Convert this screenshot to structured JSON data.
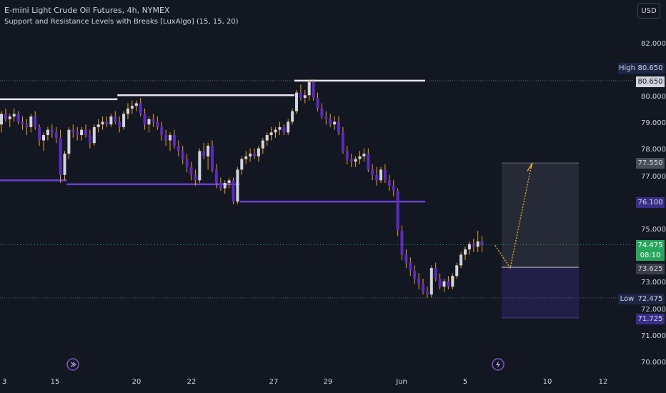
{
  "header": {
    "title": "E-mini Light Crude Oil Futures, 4h, NYMEX",
    "indicator": "Support and Resistance Levels with Breaks [LuxAlgo] (15, 15, 20)",
    "currency_button": "USD"
  },
  "colors": {
    "background": "#131722",
    "bull": "#d1d4dc",
    "bear": "#5b2bbd",
    "wick": "#f0a020",
    "resistance": "#e8e8ee",
    "support": "#6b3fd6",
    "last_price": "#26a65b",
    "forecast": "#f0b030"
  },
  "price_tags": {
    "high_label": "High",
    "high_value": "80.650",
    "high_line_value": "80.650",
    "target_value": "77.550",
    "support_value": "76.100",
    "last_value": "74.475",
    "countdown": "08:10",
    "entry_value": "73.625",
    "low_label": "Low",
    "low_value": "72.475",
    "stop_value": "71.725"
  },
  "chart_data": {
    "type": "candlestick",
    "title": "E-mini Light Crude Oil Futures, 4h, NYMEX",
    "x_ticks": [
      "3",
      "15",
      "20",
      "22",
      "27",
      "29",
      "Jun",
      "5",
      "10",
      "12"
    ],
    "y_ticks": [
      "82.000",
      "80.000",
      "79.000",
      "78.000",
      "77.000",
      "75.000",
      "73.000",
      "72.000",
      "71.000",
      "70.000"
    ],
    "ylim": [
      69.8,
      83.2
    ],
    "candles": [
      [
        79.0,
        79.5,
        78.7,
        79.4
      ],
      [
        79.4,
        79.6,
        79.1,
        79.2
      ],
      [
        79.2,
        79.4,
        78.9,
        79.3
      ],
      [
        79.3,
        79.6,
        79.1,
        79.4
      ],
      [
        79.4,
        79.5,
        79.0,
        79.1
      ],
      [
        79.1,
        79.3,
        78.8,
        79.0
      ],
      [
        79.0,
        79.2,
        78.6,
        78.9
      ],
      [
        78.9,
        79.4,
        78.7,
        79.3
      ],
      [
        79.3,
        79.5,
        78.8,
        78.9
      ],
      [
        78.9,
        79.0,
        78.2,
        78.4
      ],
      [
        78.4,
        78.7,
        78.0,
        78.6
      ],
      [
        78.6,
        78.9,
        78.4,
        78.8
      ],
      [
        78.8,
        79.0,
        78.5,
        78.7
      ],
      [
        78.7,
        78.9,
        78.3,
        78.5
      ],
      [
        78.5,
        78.8,
        76.8,
        77.1
      ],
      [
        77.1,
        78.0,
        76.9,
        77.9
      ],
      [
        77.9,
        78.9,
        77.7,
        78.8
      ],
      [
        78.8,
        79.0,
        78.5,
        78.7
      ],
      [
        78.7,
        78.9,
        78.4,
        78.6
      ],
      [
        78.6,
        78.9,
        78.4,
        78.8
      ],
      [
        78.8,
        79.0,
        78.5,
        78.6
      ],
      [
        78.6,
        78.8,
        78.1,
        78.3
      ],
      [
        78.3,
        79.0,
        78.2,
        78.9
      ],
      [
        78.9,
        79.2,
        78.7,
        79.0
      ],
      [
        79.0,
        79.3,
        78.8,
        79.1
      ],
      [
        79.1,
        79.3,
        78.9,
        79.0
      ],
      [
        79.0,
        79.4,
        78.9,
        79.3
      ],
      [
        79.3,
        79.5,
        79.0,
        79.1
      ],
      [
        79.1,
        79.3,
        78.7,
        78.9
      ],
      [
        78.9,
        79.5,
        78.8,
        79.4
      ],
      [
        79.4,
        79.8,
        79.2,
        79.6
      ],
      [
        79.6,
        79.9,
        79.4,
        79.7
      ],
      [
        79.7,
        79.9,
        79.5,
        79.8
      ],
      [
        79.8,
        80.0,
        79.3,
        79.4
      ],
      [
        79.4,
        79.6,
        78.8,
        79.0
      ],
      [
        79.0,
        79.3,
        78.7,
        79.2
      ],
      [
        79.2,
        79.4,
        78.9,
        79.1
      ],
      [
        79.1,
        79.3,
        78.8,
        78.9
      ],
      [
        78.9,
        79.1,
        78.4,
        78.6
      ],
      [
        78.6,
        78.8,
        78.2,
        78.4
      ],
      [
        78.4,
        78.7,
        78.0,
        78.6
      ],
      [
        78.6,
        78.8,
        78.1,
        78.2
      ],
      [
        78.2,
        78.4,
        77.8,
        78.0
      ],
      [
        78.0,
        78.2,
        77.5,
        77.7
      ],
      [
        77.7,
        77.9,
        77.2,
        77.4
      ],
      [
        77.4,
        77.6,
        76.9,
        77.1
      ],
      [
        77.1,
        77.3,
        76.7,
        76.9
      ],
      [
        76.9,
        78.1,
        76.8,
        78.0
      ],
      [
        78.0,
        78.3,
        77.7,
        77.8
      ],
      [
        77.8,
        78.3,
        77.3,
        78.2
      ],
      [
        78.2,
        78.4,
        77.2,
        77.3
      ],
      [
        77.3,
        77.5,
        76.6,
        76.8
      ],
      [
        76.8,
        77.0,
        76.5,
        76.6
      ],
      [
        76.6,
        76.9,
        76.4,
        76.8
      ],
      [
        76.8,
        77.0,
        76.6,
        76.9
      ],
      [
        76.9,
        77.0,
        76.0,
        76.1
      ],
      [
        76.1,
        77.4,
        76.0,
        77.3
      ],
      [
        77.3,
        77.8,
        77.1,
        77.7
      ],
      [
        77.7,
        78.0,
        77.5,
        77.8
      ],
      [
        77.8,
        78.1,
        77.6,
        77.9
      ],
      [
        77.9,
        78.1,
        77.7,
        77.8
      ],
      [
        77.8,
        78.2,
        77.6,
        78.1
      ],
      [
        78.1,
        78.5,
        77.9,
        78.4
      ],
      [
        78.4,
        78.7,
        78.2,
        78.6
      ],
      [
        78.6,
        78.9,
        78.4,
        78.7
      ],
      [
        78.7,
        78.9,
        78.5,
        78.8
      ],
      [
        78.8,
        79.1,
        78.6,
        78.9
      ],
      [
        78.9,
        79.0,
        78.6,
        78.7
      ],
      [
        78.7,
        79.2,
        78.6,
        79.1
      ],
      [
        79.1,
        79.6,
        79.0,
        79.5
      ],
      [
        79.5,
        80.3,
        79.4,
        80.2
      ],
      [
        80.2,
        80.5,
        79.9,
        80.0
      ],
      [
        80.0,
        80.3,
        79.8,
        80.1
      ],
      [
        80.1,
        80.7,
        79.9,
        80.6
      ],
      [
        80.6,
        80.7,
        79.9,
        80.0
      ],
      [
        80.0,
        80.2,
        79.5,
        79.6
      ],
      [
        79.6,
        79.8,
        79.2,
        79.3
      ],
      [
        79.3,
        79.5,
        79.0,
        79.2
      ],
      [
        79.2,
        79.4,
        78.9,
        79.0
      ],
      [
        79.0,
        79.3,
        78.8,
        79.1
      ],
      [
        79.1,
        79.3,
        78.6,
        78.7
      ],
      [
        78.7,
        78.9,
        77.9,
        78.0
      ],
      [
        78.0,
        78.2,
        77.5,
        77.7
      ],
      [
        77.7,
        77.9,
        77.4,
        77.6
      ],
      [
        77.6,
        77.8,
        77.4,
        77.7
      ],
      [
        77.7,
        78.0,
        77.5,
        77.8
      ],
      [
        77.8,
        78.1,
        77.6,
        77.9
      ],
      [
        77.9,
        78.1,
        77.2,
        77.3
      ],
      [
        77.3,
        77.5,
        76.9,
        77.1
      ],
      [
        77.1,
        77.4,
        76.7,
        76.9
      ],
      [
        76.9,
        77.4,
        76.8,
        77.3
      ],
      [
        77.3,
        77.5,
        76.8,
        76.9
      ],
      [
        76.9,
        77.1,
        76.5,
        76.7
      ],
      [
        76.7,
        76.9,
        76.3,
        76.5
      ],
      [
        76.5,
        76.6,
        74.8,
        75.0
      ],
      [
        75.0,
        75.2,
        73.9,
        74.1
      ],
      [
        74.1,
        74.3,
        73.6,
        73.8
      ],
      [
        73.8,
        74.0,
        73.3,
        73.5
      ],
      [
        73.5,
        73.7,
        73.0,
        73.2
      ],
      [
        73.2,
        73.4,
        72.8,
        73.0
      ],
      [
        73.0,
        73.2,
        72.6,
        72.7
      ],
      [
        72.7,
        72.9,
        72.475,
        72.6
      ],
      [
        72.6,
        73.7,
        72.5,
        73.6
      ],
      [
        73.6,
        73.8,
        73.1,
        73.2
      ],
      [
        73.2,
        73.4,
        72.8,
        72.9
      ],
      [
        72.9,
        73.2,
        72.7,
        73.1
      ],
      [
        73.1,
        73.3,
        72.8,
        72.9
      ],
      [
        72.9,
        73.4,
        72.8,
        73.3
      ],
      [
        73.3,
        73.8,
        73.2,
        73.7
      ],
      [
        73.7,
        74.2,
        73.6,
        74.1
      ],
      [
        74.1,
        74.4,
        73.9,
        74.3
      ],
      [
        74.3,
        74.6,
        74.1,
        74.5
      ],
      [
        74.5,
        74.7,
        74.2,
        74.4
      ],
      [
        74.4,
        75.0,
        74.2,
        74.6
      ],
      [
        74.6,
        74.8,
        74.2,
        74.475
      ]
    ],
    "levels": [
      {
        "type": "resistance",
        "from": 0,
        "to": 27,
        "value": 79.95
      },
      {
        "type": "resistance",
        "from": 28,
        "to": 69,
        "value": 80.1
      },
      {
        "type": "resistance",
        "from": 70,
        "to": 100,
        "value": 80.65
      },
      {
        "type": "support",
        "from": 0,
        "to": 15,
        "value": 76.9
      },
      {
        "type": "support",
        "from": 16,
        "to": 56,
        "value": 76.75
      },
      {
        "type": "support",
        "from": 57,
        "to": 100,
        "value": 76.1
      }
    ],
    "high_line": 80.65,
    "low_line": 72.475,
    "last_price": 74.475,
    "position": {
      "entry": 73.625,
      "target": 77.55,
      "stop": 71.725
    },
    "forecast_path": [
      [
        74.7,
        74.45
      ],
      [
        73.7,
        73.6
      ],
      [
        77.3,
        77.5
      ]
    ]
  }
}
